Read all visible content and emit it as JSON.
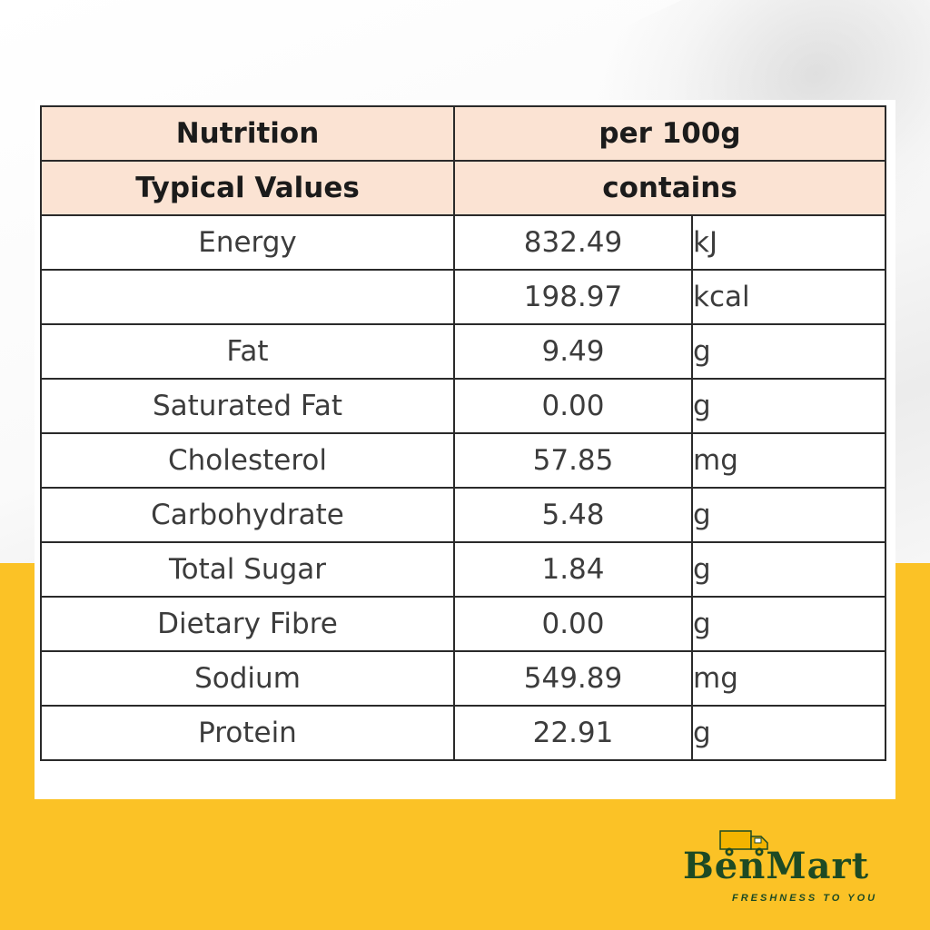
{
  "table": {
    "header": {
      "col1_line1": "Nutrition",
      "col1_line2": "Typical Values",
      "col2_line1": "per 100g",
      "col2_line2": "contains"
    },
    "rows": [
      {
        "name": "Energy",
        "value": "832.49",
        "unit": "kJ"
      },
      {
        "name": "",
        "value": "198.97",
        "unit": "kcal"
      },
      {
        "name": "Fat",
        "value": "9.49",
        "unit": "g"
      },
      {
        "name": "Saturated Fat",
        "value": "0.00",
        "unit": "g"
      },
      {
        "name": "Cholesterol",
        "value": "57.85",
        "unit": "mg"
      },
      {
        "name": "Carbohydrate",
        "value": "5.48",
        "unit": "g"
      },
      {
        "name": "Total Sugar",
        "value": "1.84",
        "unit": "g"
      },
      {
        "name": "Dietary Fibre",
        "value": "0.00",
        "unit": "g"
      },
      {
        "name": "Sodium",
        "value": "549.89",
        "unit": "mg"
      },
      {
        "name": "Protein",
        "value": "22.91",
        "unit": "g"
      }
    ]
  },
  "brand": {
    "name": "BenMart",
    "tagline": "FRESHNESS TO YOU",
    "icon": "delivery-truck-icon",
    "color": "#1d4a24",
    "truck_color": "#f4b400"
  },
  "colors": {
    "header_bg": "#fbe3d3",
    "background_yellow": "#fbc226"
  }
}
